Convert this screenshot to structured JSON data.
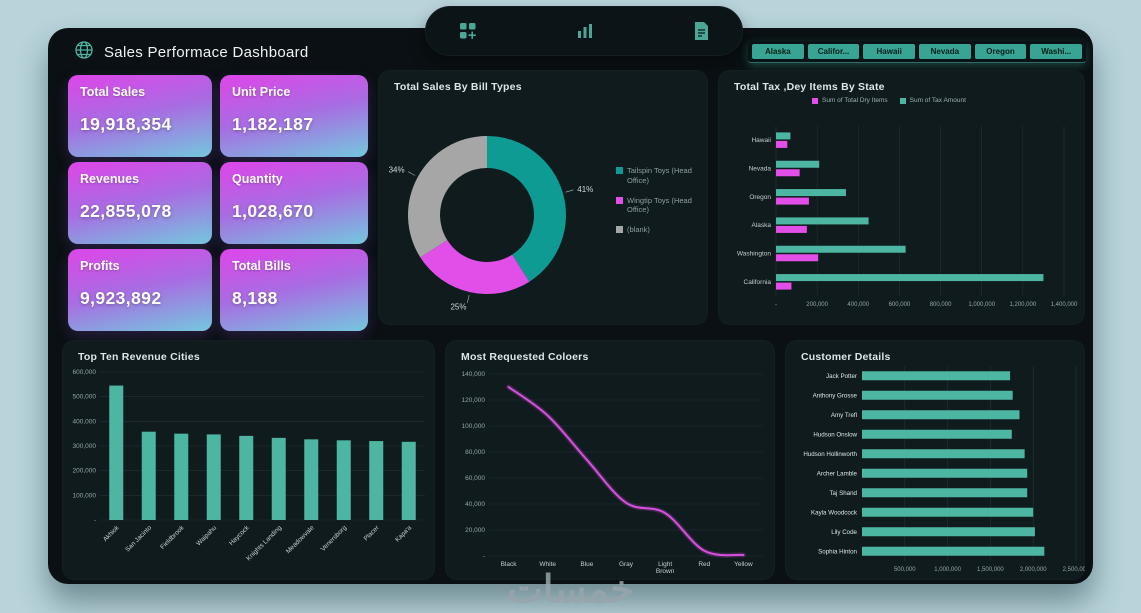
{
  "header": {
    "title": "Sales Performace Dashboard"
  },
  "nav_icons": [
    "grid-add",
    "bar-chart",
    "report"
  ],
  "slicer": {
    "items": [
      "Alaska",
      "Califor...",
      "Hawaii",
      "Nevada",
      "Oregon",
      "Washi..."
    ]
  },
  "kpi_cards": [
    {
      "label": "Total Sales",
      "value": "19,918,354"
    },
    {
      "label": "Unit Price",
      "value": "1,182,187"
    },
    {
      "label": "Revenues",
      "value": "22,855,078"
    },
    {
      "label": "Quantity",
      "value": "1,028,670"
    },
    {
      "label": "Profits",
      "value": "9,923,892"
    },
    {
      "label": "Total Bills",
      "value": "8,188"
    }
  ],
  "colors": {
    "accent_teal": "#4db6a3",
    "accent_magenta": "#e24fe8",
    "donut_teal": "#0e9b94",
    "neutral_gray": "#a6a6a6",
    "card_gradient_top": "#d84ae8",
    "card_gradient_bottom": "#74c8de"
  },
  "watermark": "خمسات",
  "chart_data": [
    {
      "id": "bill_types",
      "type": "pie",
      "title": "Total Sales By Bill Types",
      "legend_position": "right",
      "slices": [
        {
          "label": "Tailspin Toys (Head Office)",
          "pct": 41,
          "color": "#0e9b94"
        },
        {
          "label": "Wingtip Toys (Head Office)",
          "pct": 25,
          "color": "#e24fe8"
        },
        {
          "label": "(blank)",
          "pct": 34,
          "color": "#a6a6a6"
        }
      ]
    },
    {
      "id": "tax_by_state",
      "type": "bar-h-grouped",
      "title": "Total Tax ,Dey Items By State",
      "categories": [
        "Hawaii",
        "Nevada",
        "Oregon",
        "Alaska",
        "Washington",
        "California"
      ],
      "series": [
        {
          "name": "Sum of Tax Amount",
          "color": "#4db6a3",
          "values": [
            70000,
            210000,
            340000,
            450000,
            630000,
            1300000
          ]
        },
        {
          "name": "Sum of Total Dry Items",
          "color": "#e24fe8",
          "values": [
            55000,
            115000,
            160000,
            150000,
            205000,
            75000
          ]
        }
      ],
      "legend": [
        {
          "label": "Sum of Total Dry Items",
          "color": "#e24fe8"
        },
        {
          "label": "Sum of Tax Amount",
          "color": "#4db6a3"
        }
      ],
      "xticks": [
        "-",
        "200,000",
        "400,000",
        "600,000",
        "800,000",
        "1,000,000",
        "1,200,000",
        "1,400,000"
      ],
      "xlim": [
        0,
        1400000
      ],
      "grid": true
    },
    {
      "id": "top_cities",
      "type": "bar",
      "title": "Top Ten Revenue Cities",
      "categories": [
        "Akhiok",
        "San Jacinto",
        "Fieldbrook",
        "Waipahu",
        "Haycock",
        "Knights Landing",
        "Meadowvale",
        "Venersborg",
        "Placer",
        "Kapa'a"
      ],
      "values": [
        545000,
        358000,
        350000,
        347000,
        341000,
        333000,
        327000,
        323000,
        320000,
        317000
      ],
      "bar_color": "#4db6a3",
      "yticks": [
        "600,000",
        "500,000",
        "400,000",
        "300,000",
        "200,000",
        "100,000",
        "-"
      ],
      "ylim": [
        0,
        600000
      ],
      "grid": true
    },
    {
      "id": "colors_line",
      "type": "line",
      "title": "Most Requested Coloers",
      "categories": [
        "Black",
        "White",
        "Blue",
        "Gray",
        "Light Brown",
        "Red",
        "Yellow"
      ],
      "values": [
        130000,
        108000,
        74000,
        41000,
        33000,
        4000,
        800
      ],
      "line_color": "#d84fe0",
      "yticks": [
        "140,000",
        "120,000",
        "100,000",
        "80,000",
        "60,000",
        "40,000",
        "20,000",
        "-"
      ],
      "ylim": [
        0,
        140000
      ],
      "grid": true
    },
    {
      "id": "customer_details",
      "type": "bar-h",
      "title": "Customer Details",
      "categories": [
        "Jack Potter",
        "Anthony Grosse",
        "Amy Trefl",
        "Hudson Onslow",
        "Hudson Hollinworth",
        "Archer Lamble",
        "Taj Shand",
        "Kayla Woodcock",
        "Lily Code",
        "Sophia Hinton"
      ],
      "series": [
        {
          "name": "Total",
          "color": "#4db6a3",
          "values": [
            1730000,
            1760000,
            1840000,
            1750000,
            1900000,
            1930000,
            1930000,
            2000000,
            2020000,
            2130000
          ]
        }
      ],
      "xticks": [
        "500,000",
        "1,000,000",
        "1,500,000",
        "2,000,000",
        "2,500,000"
      ],
      "xlim": [
        0,
        2500000
      ],
      "grid": true
    }
  ]
}
